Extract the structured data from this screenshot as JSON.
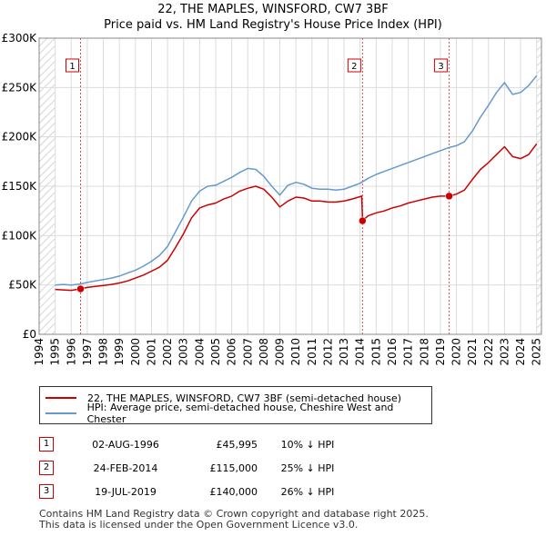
{
  "chart_data": {
    "type": "line",
    "title": "22, THE MAPLES, WINSFORD, CW7 3BF",
    "subtitle": "Price paid vs. HM Land Registry's House Price Index (HPI)",
    "xlim": [
      1994,
      2025
    ],
    "ylim": [
      0,
      300000
    ],
    "x_ticks": [
      "1994",
      "1995",
      "1996",
      "1997",
      "1998",
      "1999",
      "2000",
      "2001",
      "2002",
      "2003",
      "2004",
      "2005",
      "2006",
      "2007",
      "2008",
      "2009",
      "2010",
      "2011",
      "2012",
      "2013",
      "2014",
      "2015",
      "2016",
      "2017",
      "2018",
      "2019",
      "2020",
      "2021",
      "2022",
      "2023",
      "2024",
      "2025"
    ],
    "y_ticks": [
      {
        "value": 0,
        "label": "£0"
      },
      {
        "value": 50000,
        "label": "£50K"
      },
      {
        "value": 100000,
        "label": "£100K"
      },
      {
        "value": 150000,
        "label": "£150K"
      },
      {
        "value": 200000,
        "label": "£200K"
      },
      {
        "value": 250000,
        "label": "£250K"
      },
      {
        "value": 300000,
        "label": "£300K"
      }
    ],
    "grid": true,
    "hatched_ranges": [
      [
        1994,
        1995
      ],
      [
        2025,
        2025.3
      ]
    ],
    "series": [
      {
        "name": "22, THE MAPLES, WINSFORD, CW7 3BF (semi-detached house)",
        "color": "#cc0000",
        "x": [
          1995.0,
          1995.5,
          1996.0,
          1996.58,
          1997.0,
          1997.5,
          1998.0,
          1998.5,
          1999.0,
          1999.5,
          2000.0,
          2000.5,
          2001.0,
          2001.5,
          2002.0,
          2002.5,
          2003.0,
          2003.5,
          2004.0,
          2004.5,
          2005.0,
          2005.5,
          2006.0,
          2006.5,
          2007.0,
          2007.5,
          2008.0,
          2008.5,
          2009.0,
          2009.5,
          2010.0,
          2010.5,
          2011.0,
          2011.5,
          2012.0,
          2012.5,
          2013.0,
          2013.5,
          2014.1,
          2014.15,
          2014.5,
          2015.0,
          2015.5,
          2016.0,
          2016.5,
          2017.0,
          2017.5,
          2018.0,
          2018.5,
          2019.0,
          2019.55,
          2020.0,
          2020.5,
          2021.0,
          2021.5,
          2022.0,
          2022.5,
          2023.0,
          2023.5,
          2024.0,
          2024.5,
          2025.0
        ],
        "y": [
          45500,
          45000,
          44500,
          45995,
          47500,
          48500,
          49500,
          50500,
          52000,
          54000,
          57000,
          60000,
          64000,
          68000,
          75000,
          88000,
          102000,
          118000,
          128000,
          131000,
          133000,
          137000,
          140000,
          145000,
          148000,
          150000,
          147000,
          139000,
          129000,
          135000,
          139000,
          138000,
          135000,
          135000,
          134000,
          134000,
          135000,
          137000,
          140000,
          115000,
          120000,
          123000,
          125000,
          128000,
          130000,
          133000,
          135000,
          137000,
          139000,
          140000,
          140000,
          142000,
          146000,
          157000,
          167000,
          174000,
          182000,
          190000,
          180000,
          178000,
          182000,
          193000
        ]
      },
      {
        "name": "HPI: Average price, semi-detached house, Cheshire West and Chester",
        "color": "#6699cc",
        "x": [
          1995.0,
          1995.5,
          1996.0,
          1996.58,
          1997.0,
          1997.5,
          1998.0,
          1998.5,
          1999.0,
          1999.5,
          2000.0,
          2000.5,
          2001.0,
          2001.5,
          2002.0,
          2002.5,
          2003.0,
          2003.5,
          2004.0,
          2004.5,
          2005.0,
          2005.5,
          2006.0,
          2006.5,
          2007.0,
          2007.5,
          2008.0,
          2008.5,
          2009.0,
          2009.5,
          2010.0,
          2010.5,
          2011.0,
          2011.5,
          2012.0,
          2012.5,
          2013.0,
          2013.5,
          2014.0,
          2014.5,
          2015.0,
          2015.5,
          2016.0,
          2016.5,
          2017.0,
          2017.5,
          2018.0,
          2018.5,
          2019.0,
          2019.5,
          2020.0,
          2020.5,
          2021.0,
          2021.5,
          2022.0,
          2022.5,
          2023.0,
          2023.5,
          2024.0,
          2024.5,
          2025.0
        ],
        "y": [
          50000,
          50500,
          50000,
          51000,
          52500,
          54000,
          55500,
          57000,
          59000,
          62000,
          65000,
          69000,
          74000,
          80000,
          89000,
          104000,
          119000,
          135000,
          145000,
          150000,
          151000,
          155000,
          159000,
          164000,
          168000,
          167000,
          160000,
          150000,
          141000,
          151000,
          154000,
          152000,
          148000,
          147000,
          147000,
          146000,
          147000,
          150000,
          153000,
          158000,
          162000,
          165000,
          168000,
          171000,
          174000,
          177000,
          180000,
          183000,
          186000,
          189000,
          191000,
          195000,
          206000,
          220000,
          232000,
          245000,
          255000,
          243000,
          245000,
          252000,
          262000
        ]
      }
    ],
    "markers": [
      {
        "label": "1",
        "x": 1996.58,
        "y": 45995
      },
      {
        "label": "2",
        "x": 2014.15,
        "y": 115000
      },
      {
        "label": "3",
        "x": 2019.55,
        "y": 140000
      }
    ]
  },
  "legend": {
    "property_label": "22, THE MAPLES, WINSFORD, CW7 3BF (semi-detached house)",
    "hpi_label": "HPI: Average price, semi-detached house, Cheshire West and Chester",
    "property_color": "#cc0000",
    "hpi_color": "#6699cc"
  },
  "transactions": [
    {
      "num": "1",
      "date": "02-AUG-1996",
      "price": "£45,995",
      "hpi": "10% ↓ HPI"
    },
    {
      "num": "2",
      "date": "24-FEB-2014",
      "price": "£115,000",
      "hpi": "25% ↓ HPI"
    },
    {
      "num": "3",
      "date": "19-JUL-2019",
      "price": "£140,000",
      "hpi": "26% ↓ HPI"
    }
  ],
  "footer": {
    "line1": "Contains HM Land Registry data © Crown copyright and database right 2025.",
    "line2": "This data is licensed under the Open Government Licence v3.0."
  }
}
